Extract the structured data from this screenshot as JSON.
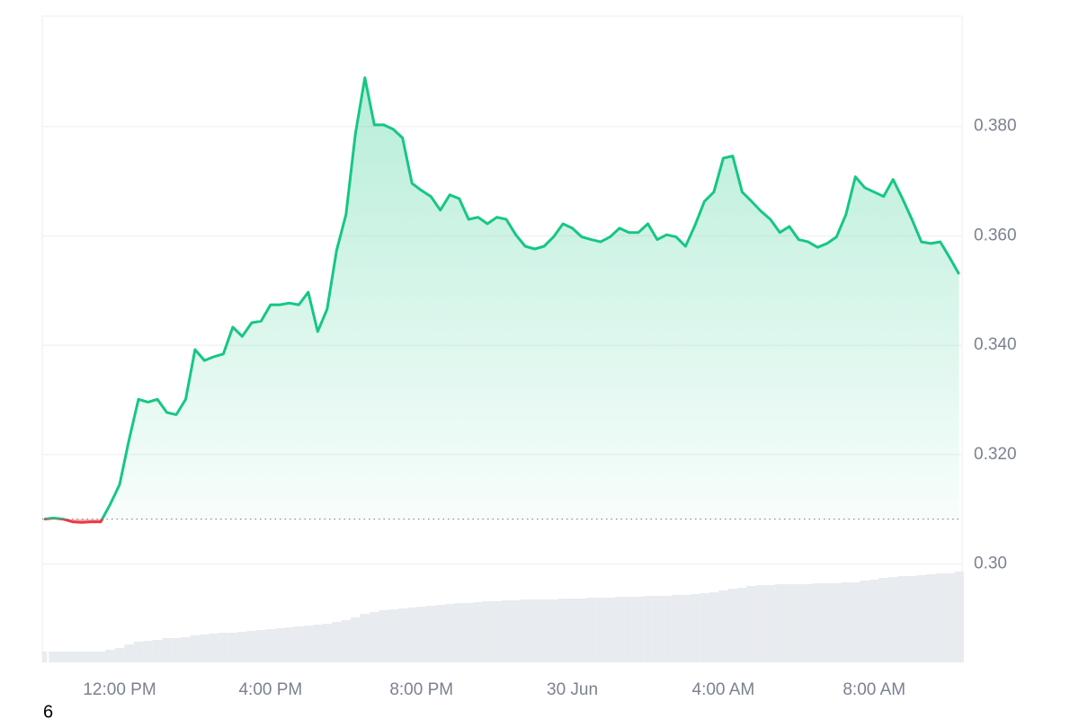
{
  "chart_data": {
    "type": "line",
    "x": [
      10,
      10.25,
      10.5,
      10.75,
      11,
      11.25,
      11.5,
      11.75,
      12,
      12.25,
      12.5,
      12.75,
      13,
      13.25,
      13.5,
      13.75,
      14,
      14.25,
      14.5,
      14.75,
      15,
      15.25,
      15.5,
      15.75,
      16,
      16.25,
      16.5,
      16.75,
      17,
      17.25,
      17.5,
      17.75,
      18,
      18.25,
      18.5,
      18.75,
      19,
      19.25,
      19.5,
      19.75,
      20,
      20.25,
      20.5,
      20.75,
      21,
      21.25,
      21.5,
      21.75,
      22,
      22.25,
      22.5,
      22.75,
      23,
      23.25,
      23.5,
      23.75,
      24,
      24.25,
      24.5,
      24.75,
      25,
      25.25,
      25.5,
      25.75,
      26,
      26.25,
      26.5,
      26.75,
      27,
      27.25,
      27.5,
      27.75,
      28,
      28.25,
      28.5,
      28.75,
      29,
      29.25,
      29.5,
      29.75,
      30,
      30.25,
      30.5,
      30.75,
      31,
      31.25,
      31.5,
      31.75,
      32,
      32.25,
      32.5,
      32.75,
      33,
      33.25,
      33.5,
      33.75,
      34,
      34.25
    ],
    "values": [
      0.3082,
      0.3084,
      0.3082,
      0.3077,
      0.3076,
      0.3077,
      0.3077,
      0.3109,
      0.3145,
      0.3227,
      0.3301,
      0.3296,
      0.3301,
      0.3277,
      0.3273,
      0.3301,
      0.3392,
      0.3372,
      0.3379,
      0.3384,
      0.3433,
      0.3416,
      0.3441,
      0.3444,
      0.3474,
      0.3474,
      0.3477,
      0.3474,
      0.3497,
      0.3425,
      0.3466,
      0.3573,
      0.3639,
      0.3787,
      0.3889,
      0.3803,
      0.3803,
      0.3795,
      0.3779,
      0.3696,
      0.3683,
      0.3672,
      0.3647,
      0.3675,
      0.3668,
      0.363,
      0.3634,
      0.3622,
      0.3634,
      0.363,
      0.3602,
      0.3581,
      0.3576,
      0.3581,
      0.3598,
      0.3622,
      0.3614,
      0.3598,
      0.3593,
      0.3589,
      0.3598,
      0.3614,
      0.3606,
      0.3606,
      0.3622,
      0.3593,
      0.3602,
      0.3598,
      0.3581,
      0.3619,
      0.3663,
      0.368,
      0.3742,
      0.3746,
      0.368,
      0.3663,
      0.3645,
      0.363,
      0.3606,
      0.3617,
      0.3593,
      0.3589,
      0.3579,
      0.3586,
      0.3598,
      0.3639,
      0.3708,
      0.3688,
      0.368,
      0.3672,
      0.3703,
      0.3668,
      0.363,
      0.3589,
      0.3586,
      0.3589,
      0.356,
      0.353
    ],
    "volume": [
      12,
      12,
      12,
      12,
      12,
      12,
      12,
      14,
      16,
      20,
      23,
      24,
      25,
      27,
      27,
      28,
      30,
      31,
      32,
      33,
      33,
      34,
      35,
      36,
      37,
      38,
      39,
      40,
      41,
      42,
      43,
      45,
      47,
      50,
      54,
      56,
      58,
      59,
      60,
      61,
      62,
      63,
      64,
      65,
      66,
      66,
      67,
      68,
      68,
      69,
      69,
      70,
      70,
      70,
      70,
      71,
      71,
      71,
      72,
      72,
      72,
      73,
      73,
      73,
      74,
      74,
      74,
      75,
      75,
      76,
      77,
      78,
      80,
      82,
      83,
      85,
      86,
      86,
      87,
      87,
      87,
      87,
      88,
      88,
      88,
      89,
      89,
      91,
      92,
      94,
      95,
      96,
      96,
      97,
      98,
      99,
      99,
      101
    ],
    "volume_lim": [
      0,
      101
    ],
    "baseline": 0.3082,
    "up_color": "#16c784",
    "down_color": "#ea3943",
    "volume_color": "#e8ebef",
    "xlim": [
      9.95,
      34.33
    ],
    "xticks": [
      {
        "value": 12,
        "label": "12:00 PM"
      },
      {
        "value": 16,
        "label": "4:00 PM"
      },
      {
        "value": 20,
        "label": "8:00 PM"
      },
      {
        "value": 24,
        "label": "30 Jun"
      },
      {
        "value": 28,
        "label": "4:00 AM"
      },
      {
        "value": 32,
        "label": "8:00 AM"
      }
    ],
    "ylim": [
      0.282,
      0.4
    ],
    "yticks": [
      {
        "value": 0.3,
        "label": "0.30"
      },
      {
        "value": 0.32,
        "label": "0.320"
      },
      {
        "value": 0.34,
        "label": "0.340"
      },
      {
        "value": 0.36,
        "label": "0.360"
      },
      {
        "value": 0.38,
        "label": "0.380"
      }
    ],
    "grid": true,
    "footnote": "6"
  }
}
